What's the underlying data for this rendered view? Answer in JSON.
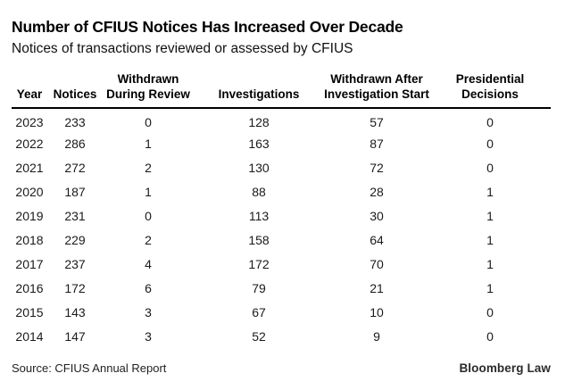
{
  "header": {
    "title": "Number of CFIUS Notices Has Increased Over Decade",
    "subtitle": "Notices of transactions reviewed or assessed by CFIUS"
  },
  "table": {
    "display_columns": [
      "Year",
      "Notices",
      "Withdrawn\nDuring Review",
      "Investigations",
      "Withdrawn After\nInvestigation Start",
      "Presidential\nDecisions"
    ]
  },
  "chart_data": {
    "type": "table",
    "title": "Number of CFIUS Notices Has Increased Over Decade",
    "subtitle": "Notices of transactions reviewed or assessed by CFIUS",
    "columns": [
      "Year",
      "Notices",
      "Withdrawn During Review",
      "Investigations",
      "Withdrawn After Investigation Start",
      "Presidential Decisions"
    ],
    "rows": [
      [
        "2023",
        "233",
        "0",
        "128",
        "57",
        "0"
      ],
      [
        "2022",
        "286",
        "1",
        "163",
        "87",
        "0"
      ],
      [
        "2021",
        "272",
        "2",
        "130",
        "72",
        "0"
      ],
      [
        "2020",
        "187",
        "1",
        "88",
        "28",
        "1"
      ],
      [
        "2019",
        "231",
        "0",
        "113",
        "30",
        "1"
      ],
      [
        "2018",
        "229",
        "2",
        "158",
        "64",
        "1"
      ],
      [
        "2017",
        "237",
        "4",
        "172",
        "70",
        "1"
      ],
      [
        "2016",
        "172",
        "6",
        "79",
        "21",
        "1"
      ],
      [
        "2015",
        "143",
        "3",
        "67",
        "10",
        "0"
      ],
      [
        "2014",
        "147",
        "3",
        "52",
        "9",
        "0"
      ]
    ],
    "source": "Source: CFIUS Annual Report",
    "credit": "Bloomberg Law",
    "layout": {
      "grid": "none",
      "header_rule_color": "#000000",
      "background": "#ffffff"
    }
  },
  "footer": {
    "source": "Source: CFIUS Annual Report",
    "brand": "Bloomberg Law"
  }
}
